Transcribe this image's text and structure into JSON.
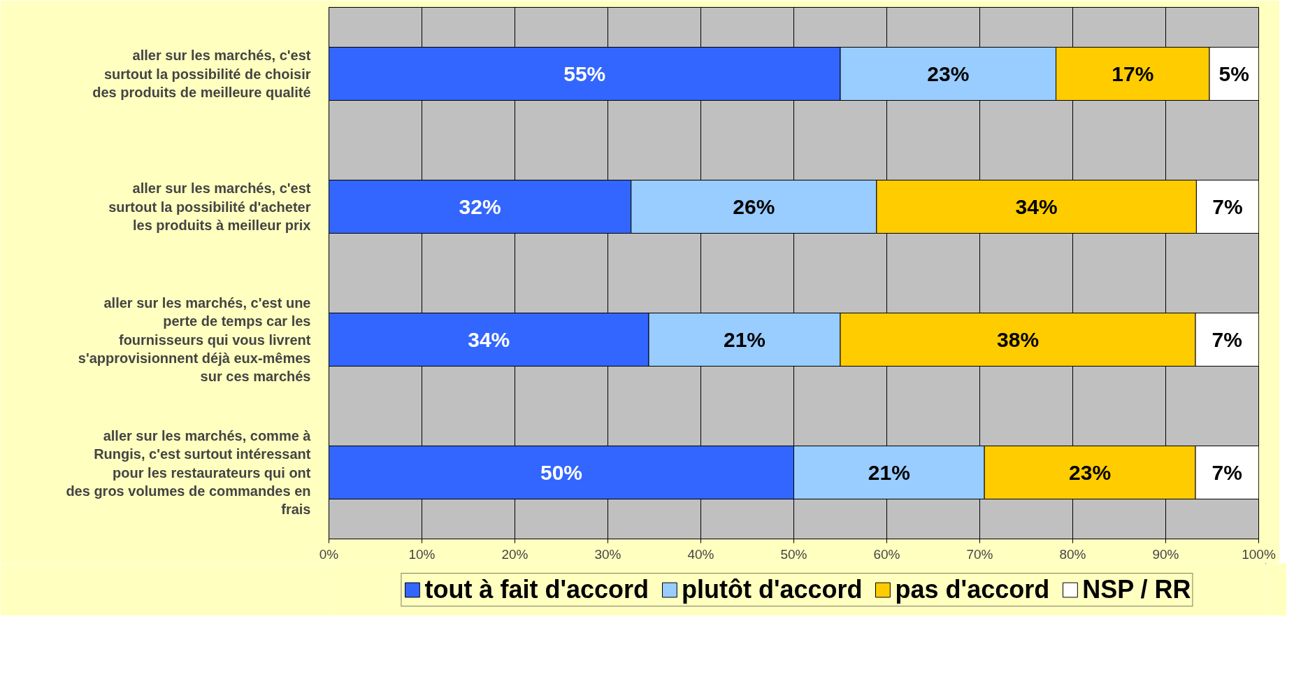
{
  "chart_data": {
    "type": "bar",
    "orientation": "horizontal",
    "stacked": true,
    "categories": [
      "aller sur les marchés, c'est surtout la possibilité de choisir des produits de meilleure qualité",
      "aller sur les marchés, c'est surtout la possibilité d'acheter les produits à meilleur prix",
      "aller sur les marchés, c'est une perte de temps car les fournisseurs qui vous livrent s'approvisionnent déjà eux-mêmes sur ces marchés",
      "aller sur les marchés, comme à Rungis, c'est surtout intéressant pour les restaurateurs qui ont des gros volumes de commandes en frais"
    ],
    "series": [
      {
        "name": "tout à fait d'accord",
        "color": "#3366ff",
        "values": [
          55,
          32.5,
          34.4,
          50
        ],
        "value_labels": [
          "55%",
          "32%",
          "34%",
          "50%"
        ]
      },
      {
        "name": "plutôt d'accord",
        "color": "#99ccff",
        "values": [
          23.2,
          26.4,
          20.6,
          20.5
        ],
        "value_labels": [
          "23%",
          "26%",
          "21%",
          "21%"
        ]
      },
      {
        "name": "pas d'accord",
        "color": "#ffcc00",
        "values": [
          16.5,
          34.4,
          38.2,
          22.7
        ],
        "value_labels": [
          "17%",
          "34%",
          "38%",
          "23%"
        ]
      },
      {
        "name": "NSP / RR",
        "color": "#ffffff",
        "values": [
          5.3,
          6.7,
          6.8,
          6.8
        ],
        "value_labels": [
          "5%",
          "7%",
          "7%",
          "7%"
        ]
      }
    ],
    "xlim": [
      0,
      100
    ],
    "xticks": [
      {
        "value": 0,
        "label": "0%"
      },
      {
        "value": 10,
        "label": "10%"
      },
      {
        "value": 20,
        "label": "20%"
      },
      {
        "value": 30,
        "label": "30%"
      },
      {
        "value": 40,
        "label": "40%"
      },
      {
        "value": 50,
        "label": "50%"
      },
      {
        "value": 60,
        "label": "60%"
      },
      {
        "value": 70,
        "label": "70%"
      },
      {
        "value": 80,
        "label": "80%"
      },
      {
        "value": 90,
        "label": "90%"
      },
      {
        "value": 100,
        "label": "100%"
      }
    ],
    "grid": "x",
    "legend": "bottom"
  }
}
